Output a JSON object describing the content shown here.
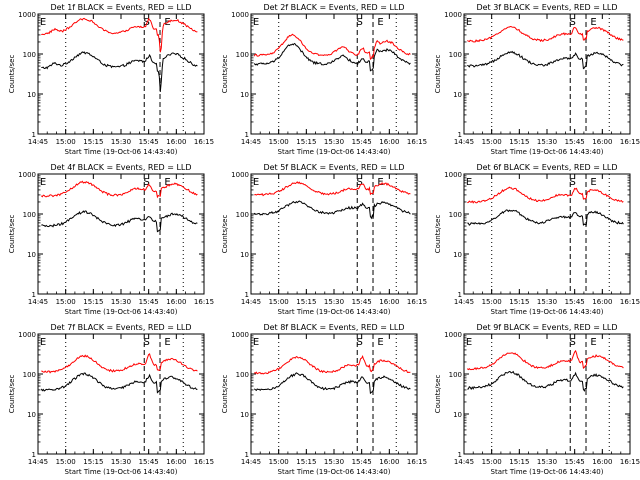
{
  "chart_data": [
    {
      "type": "line",
      "title": "Det 1f BLACK = Events, RED = LLD",
      "marks": [
        "S",
        "E"
      ]
    },
    {
      "type": "line",
      "title": "Det 2f BLACK = Events, RED = LLD",
      "marks": [
        "S",
        "E"
      ]
    },
    {
      "type": "line",
      "title": "Det 3f BLACK = Events, RED = LLD",
      "marks": [
        "S",
        "E"
      ]
    },
    {
      "type": "line",
      "title": "Det 4f BLACK = Events, RED = LLD",
      "marks": [
        "S",
        "E"
      ]
    },
    {
      "type": "line",
      "title": "Det 5f BLACK = Events, RED = LLD",
      "marks": [
        "S",
        "E"
      ]
    },
    {
      "type": "line",
      "title": "Det 6f BLACK = Events, RED = LLD",
      "marks": [
        "S",
        "E"
      ]
    },
    {
      "type": "line",
      "title": "Det 7f BLACK = Events, RED = LLD",
      "marks": [
        "S",
        "E"
      ]
    },
    {
      "type": "line",
      "title": "Det 8f BLACK = Events, RED = LLD",
      "marks": [
        "S",
        "E"
      ]
    },
    {
      "type": "line",
      "title": "Det 9f BLACK = Events, RED = LLD",
      "marks": [
        "S",
        "E"
      ]
    }
  ],
  "shared": {
    "xlabel": "Start Time (19-Oct-06 14:43:40)",
    "ylabel": "Counts/sec",
    "x_tick_labels": [
      "14:45",
      "15:00",
      "15:15",
      "15:30",
      "15:45",
      "16:00",
      "16:15"
    ],
    "y_tick_labels": [
      "1",
      "10",
      "100",
      "1000"
    ],
    "y_scale": "log",
    "ylim": [
      1,
      1000
    ],
    "series_colors": {
      "events": "#000000",
      "lld": "#ff0000"
    }
  }
}
